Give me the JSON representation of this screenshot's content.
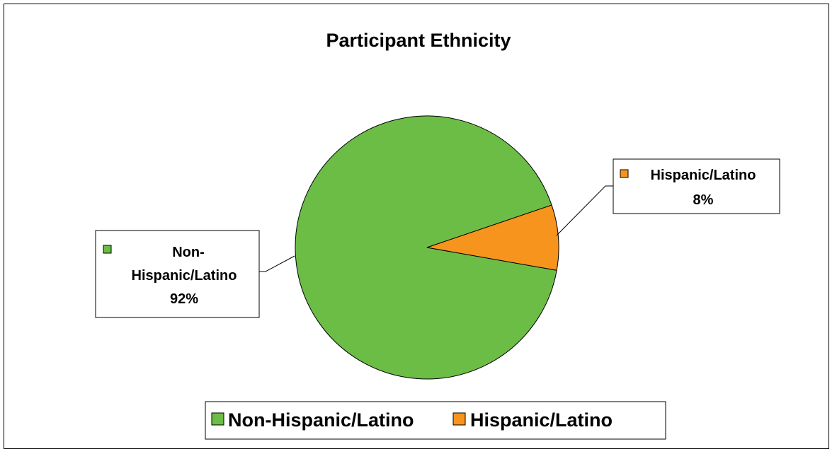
{
  "chart_data": {
    "type": "pie",
    "title": "Participant Ethnicity",
    "slices": [
      {
        "name": "Non-Hispanic/Latino",
        "value": 92,
        "label": "92%",
        "color": "#6cbd45"
      },
      {
        "name": "Hispanic/Latino",
        "value": 8,
        "label": "8%",
        "color": "#f7941d"
      }
    ],
    "data_labels": [
      {
        "lines": [
          "Non-",
          "Hispanic/Latino"
        ],
        "pct": "92%"
      },
      {
        "lines": [
          "Hispanic/Latino"
        ],
        "pct": "8%"
      }
    ],
    "legend": {
      "position": "bottom",
      "entries": [
        "Non-Hispanic/Latino",
        "Hispanic/Latino"
      ]
    }
  }
}
